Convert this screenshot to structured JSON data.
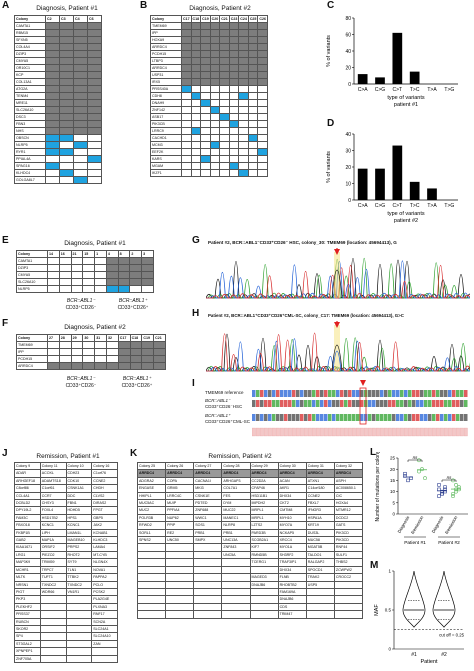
{
  "panels": {
    "A": {
      "letter": "A",
      "title": "Diagnosis, Patient #1",
      "headers": [
        "Colony",
        "C2",
        "C3",
        "C4",
        "C6"
      ],
      "genes": [
        "CAMTA1",
        "RBM15",
        "SFXN5",
        "COL4A4",
        "DZIP3",
        "CMYA5",
        "OR10C1",
        "KCP",
        "COL13A1",
        "ATG2A",
        "TENM4",
        "MRE11",
        "SLC26A10",
        "DSC3",
        "FBN3",
        "NHS",
        "OBSCN",
        "NLRP5",
        "RYR1",
        "PPIAL4A",
        "SPAG16",
        "KLHDC4",
        "GOLGA8L7"
      ],
      "blue": [
        [
          16,
          1
        ],
        [
          16,
          2
        ],
        [
          17,
          1
        ],
        [
          17,
          3
        ],
        [
          18,
          1
        ],
        [
          18,
          2
        ],
        [
          19,
          4
        ],
        [
          20,
          1
        ],
        [
          21,
          2
        ],
        [
          22,
          3
        ]
      ]
    },
    "B": {
      "letter": "B",
      "title": "Diagnosis, Patient #2",
      "headers": [
        "Colony",
        "C17",
        "C18",
        "C19",
        "C20",
        "C21",
        "C23",
        "C24",
        "C25",
        "C26"
      ],
      "genes": [
        "TMEM69",
        "IPP",
        "HOXA9",
        "ARRDC4",
        "PCDH15",
        "LTBP3",
        "ARRDC4",
        "USP31",
        "IRX5",
        "PRSS40A",
        "CDH8",
        "DNAH9",
        "ZNF142",
        "ASB17",
        "PIK3CB",
        "LRRC9",
        "CACHD1",
        "MCM3",
        "EEF2K",
        "KARS",
        "MGAM",
        "IKZF1"
      ],
      "blue": [
        [
          9,
          1
        ],
        [
          10,
          2
        ],
        [
          10,
          7
        ],
        [
          11,
          3
        ],
        [
          12,
          4
        ],
        [
          13,
          5
        ],
        [
          14,
          6
        ],
        [
          15,
          2
        ],
        [
          16,
          8
        ],
        [
          17,
          4
        ],
        [
          18,
          9
        ],
        [
          19,
          3
        ],
        [
          20,
          6
        ],
        [
          21,
          7
        ]
      ]
    },
    "C": {
      "letter": "C",
      "ylabel": "% of variants",
      "xlabel": "type of variants patient #1"
    },
    "D": {
      "letter": "D",
      "ylabel": "% of variants",
      "xlabel": "type of variants patient #2"
    },
    "E": {
      "letter": "E",
      "title": "Diagnosis, Patient #1",
      "headers": [
        "Colony",
        "14",
        "16",
        "21",
        "15",
        "1",
        "4",
        "8",
        "2",
        "3"
      ],
      "genes": [
        "CAMTA1",
        "DZIP3",
        "CMYA5",
        "SLC26A10",
        "NLRP5"
      ],
      "group1": "BCR::ABL1⁻",
      "group2": "BCR::ABL1⁺",
      "sub1": "CD33⁺CD26⁻",
      "sub2": "CD33⁺CD26⁺"
    },
    "F": {
      "letter": "F",
      "title": "Diagnosis, Patient #2",
      "headers": [
        "Colony",
        "27",
        "28",
        "29",
        "30",
        "31",
        "32",
        "C17",
        "C18",
        "C19",
        "C21"
      ],
      "genes": [
        "TMEM69",
        "IPP",
        "PCDH15",
        "ARRDC4"
      ],
      "group1": "BCR::ABL1⁻",
      "group2": "BCR::ABL1⁺",
      "sub1": "CD33⁺CD26⁻",
      "sub2": "CD33⁺CD26⁺"
    },
    "G": {
      "letter": "G",
      "title": "Patient #2, BCR::ABL1⁻CD33⁺CD26⁻ HSC, colony_30: TMEM69 (location: 45694413), G"
    },
    "H": {
      "letter": "H",
      "title": "Patient #2, BCR::ABL1⁺CD33⁺CD26⁺CML-SC, colony_C17: TMEM69 (location: 45694413), G>C"
    },
    "I": {
      "letter": "I",
      "ref": "TMEM69 reference",
      "row1a": "BCR::ABL1⁻",
      "row1b": "CD33⁺CD26⁻HSC",
      "row2a": "BCR::ABL1⁺",
      "row2b": "CD33⁺CD26⁺CML-SC"
    },
    "J": {
      "letter": "J",
      "title": "Remission, Patient #1",
      "headers": [
        "Colony 9",
        "Colony 11",
        "Colony 10",
        "Colony 16"
      ],
      "rows": [
        [
          "ADAR",
          "ACOXL",
          "CDH23",
          "C1orf76"
        ],
        [
          "ARHGEF18",
          "ADAMTS18",
          "CDK10",
          "CCNE2"
        ],
        [
          "C8orf86",
          "C1orf61",
          "CSNK1A1",
          "CHDH"
        ],
        [
          "CCL4A1",
          "CCR7",
          "DDC",
          "CLVS2"
        ],
        [
          "DCBLD2",
          "CHSY3",
          "FBN1",
          "DIRAS2"
        ],
        [
          "DPY19L2",
          "FOXL4",
          "HDHD5",
          "FPGT"
        ],
        [
          "FAM3C",
          "HSD17B2",
          "HPS1",
          "GBP5"
        ],
        [
          "FBXO18",
          "KCNC1",
          "KCNC1",
          "JAK2"
        ],
        [
          "FKBP1B",
          "LIPH",
          "LMAN1L",
          "KCNAB1"
        ],
        [
          "GAB2",
          "MAP1A",
          "MAGEB10",
          "KLHDC3"
        ],
        [
          "KIAA1671",
          "ORSIF2",
          "PRPS2",
          "LAMA4"
        ],
        [
          "LRG1",
          "PIEZO2",
          "RHOT2",
          "MT-CYB"
        ],
        [
          "MAP3K9",
          "TRIM59",
          "SYT9",
          "NLGN4X"
        ],
        [
          "MCHR1",
          "TRPC7",
          "TLN1",
          "NOVA1"
        ],
        [
          "MLTK",
          "TUFT1",
          "TTBK2",
          "PAPPA2"
        ],
        [
          "NRSN1",
          "TXNDC2",
          "TXNDC2",
          "PCLO"
        ],
        [
          "PIGT",
          "WDR66",
          "VN1R1",
          "PCSK2"
        ],
        [
          "PKP3",
          "",
          "",
          "PLA2G4E"
        ],
        [
          "PLEKHF2",
          "",
          "",
          "PLXNA3"
        ],
        [
          "PRSS37",
          "",
          "",
          "RNF17"
        ],
        [
          "RUBCN",
          "",
          "",
          "SCN2A"
        ],
        [
          "SKOR2",
          "",
          "",
          "SLC24A1"
        ],
        [
          "SP4",
          "",
          "",
          "SLC24A10"
        ],
        [
          "ST3GAL2",
          "",
          "",
          "ZAN"
        ],
        [
          "XPNPEP1",
          "",
          "",
          ""
        ],
        [
          "ZNF705A",
          "",
          "",
          ""
        ]
      ]
    },
    "K": {
      "letter": "K",
      "title": "Remission, Patient #2",
      "headers": [
        "Colony 25",
        "Colony 26",
        "Colony 27",
        "Colony 28",
        "Colony 29",
        "Colony 30",
        "Colony 31",
        "Colony 32"
      ],
      "hdr_row": [
        "ARRDC4",
        "ARRDC4",
        "ARRDC4",
        "ARRDC4",
        "ARRDC4",
        "ARRDC4",
        "ARRDC4",
        "ARRDC4"
      ],
      "rows": [
        [
          "ADGRA2",
          "COPA",
          "CACNA1I",
          "ARHGAP3",
          "CC2D2A",
          "ACAN",
          "ATXN1",
          "ASPH"
        ],
        [
          "ENGASE",
          "GRM5",
          "MKI3",
          "COL7A1",
          "CFAP46",
          "AKR1",
          "C14orf180",
          "AC008650.1"
        ],
        [
          "HHIPL1",
          "LRRC4C",
          "CSNK1E",
          "FES",
          "HSD11B1",
          "DHX34",
          "CCNE2",
          "CIC"
        ],
        [
          "MUC5AC",
          "MUIP",
          "PDTED",
          "DYM",
          "IMPDH2",
          "CKT2",
          "FBXL7",
          "HOXA4"
        ],
        [
          "MUC2",
          "PPFIA4",
          "ZNF688",
          "MUC22",
          "MRPL1",
          "CMTM8",
          "IFNGR3",
          "MTMR12"
        ],
        [
          "POLR3B",
          "NUP62",
          "WWC1",
          "MANEC1",
          "MRPL1",
          "MYH10",
          "HSPA1A",
          "DCDC2"
        ],
        [
          "RFWD2",
          "PPIP",
          "SOS1",
          "NLRP8",
          "LZTS2",
          "MYO7A",
          "KRT19",
          "GATS"
        ],
        [
          "SORL1",
          "RE2",
          "PRB1",
          "PRB1",
          "PARD3B",
          "NCKAP5",
          "DUS3L",
          "PIK3CD"
        ],
        [
          "SPNS2",
          "UNC50",
          "SMPX",
          "UNC13A",
          "SCGB2A1",
          "XRCC4",
          "MUC58",
          "PIK3CD"
        ],
        [
          "",
          "",
          "",
          "ZNF843",
          "KIF7",
          "MYO1A",
          "MGAT5B",
          "RNF44"
        ],
        [
          "",
          "",
          "",
          "UNC5A",
          "RMND5B",
          "SH3RF2",
          "TALDO1",
          "SULF1"
        ],
        [
          "",
          "",
          "",
          "",
          "TCERG1",
          "TRAF3IP1",
          "RALGAP2",
          "THBS2"
        ],
        [
          "",
          "",
          "",
          "",
          "",
          "DHX34",
          "SPOCD1",
          "ZCWPW2"
        ],
        [
          "",
          "",
          "",
          "",
          "MAGED3",
          "FLNB",
          "TRAK2",
          "CROCC2"
        ],
        [
          "",
          "",
          "",
          "",
          "DNAJB6",
          "RHOBTB2",
          "USP5",
          ""
        ],
        [
          "",
          "",
          "",
          "",
          "",
          "FAM169A",
          "",
          ""
        ],
        [
          "",
          "",
          "",
          "",
          "",
          "DNAJB6",
          "",
          ""
        ],
        [
          "",
          "",
          "",
          "",
          "",
          "CDS",
          "",
          ""
        ],
        [
          "",
          "",
          "",
          "",
          "",
          "TRIM47",
          "",
          ""
        ]
      ]
    },
    "L": {
      "letter": "L",
      "ylabel": "Number of mutations per colony",
      "ns1": "ns",
      "ns2": "ns",
      "cat1": "Diagnosis",
      "cat2": "Remission",
      "cat3": "Diagnosis",
      "cat4": "Remission",
      "p1": "Patient #1",
      "p2": "Patient #2"
    },
    "M": {
      "letter": "M",
      "ylabel": "MAF",
      "cutoff": "cut off = 0.25",
      "xlabel": "Patient",
      "x1": "#1",
      "x2": "#2"
    }
  },
  "colors": {
    "grey": "#7d7d7d",
    "blue": "#1fa3e0",
    "header": "#999999",
    "green": "#5cb85c",
    "navy": "#2c3e8f",
    "red": "#e02020"
  },
  "chart_data": [
    {
      "type": "bar",
      "title": "",
      "categories": [
        "C>A",
        "C>G",
        "C>T",
        "T>C",
        "T>A",
        "T>G"
      ],
      "values": [
        12,
        8,
        62,
        15,
        0,
        0
      ],
      "ylabel": "% of variants",
      "xlabel": "type of variants patient #1",
      "ylim": [
        0,
        80
      ],
      "yticks": [
        0,
        20,
        40,
        60,
        80
      ]
    },
    {
      "type": "bar",
      "title": "",
      "categories": [
        "C>A",
        "C>G",
        "C>T",
        "T>C",
        "T>A",
        "T>G"
      ],
      "values": [
        19,
        19,
        33,
        11,
        7,
        0
      ],
      "ylabel": "% of variants",
      "xlabel": "type of variants patient #2",
      "ylim": [
        0,
        40
      ],
      "yticks": [
        0,
        10,
        20,
        30,
        40
      ]
    },
    {
      "type": "scatter",
      "ylabel": "Number of mutations per colony",
      "categories": [
        "Diagnosis",
        "Remission",
        "Diagnosis",
        "Remission"
      ],
      "ylim": [
        0,
        25
      ],
      "yticks": [
        0,
        5,
        10,
        15,
        20,
        25
      ],
      "series": [
        {
          "values": [
            17,
            15,
            16,
            18
          ]
        },
        {
          "values": [
            24,
            20,
            16,
            19
          ]
        },
        {
          "values": [
            8,
            10,
            12,
            11,
            9,
            10,
            13,
            9,
            11
          ]
        },
        {
          "values": [
            9,
            13,
            11,
            15,
            11,
            12,
            8,
            10
          ]
        }
      ]
    },
    {
      "type": "violin",
      "ylabel": "MAF",
      "categories": [
        "#1",
        "#2"
      ],
      "ylim": [
        0,
        1
      ],
      "yticks": [
        0,
        0.5,
        1
      ],
      "cutoff": 0.25
    }
  ]
}
